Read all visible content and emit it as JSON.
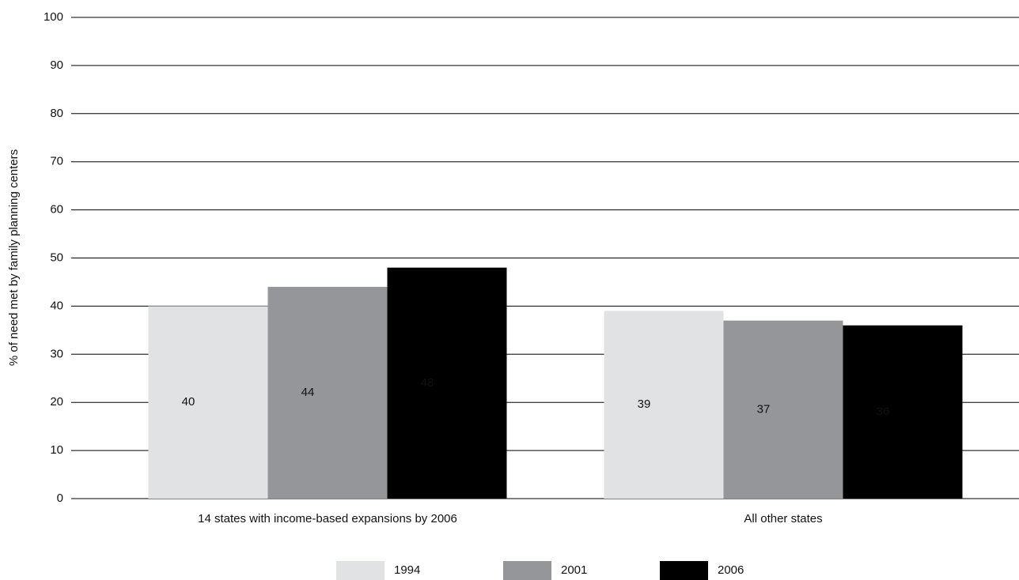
{
  "chart_data": {
    "type": "bar",
    "y_label": "% of need met by family planning centers",
    "categories": [
      "14 states with income-based expansions by 2006",
      "All other states"
    ],
    "series": [
      {
        "name": "1994",
        "color": "#e1e2e4",
        "values": [
          40,
          39
        ]
      },
      {
        "name": "2001",
        "color": "#959699",
        "values": [
          44,
          37
        ]
      },
      {
        "name": "2006",
        "color": "#000000",
        "values": [
          48,
          36
        ]
      }
    ],
    "ylim": [
      0,
      100
    ],
    "yticks": [
      0,
      10,
      20,
      30,
      40,
      50,
      60,
      70,
      80,
      90,
      100
    ],
    "grid": true
  }
}
